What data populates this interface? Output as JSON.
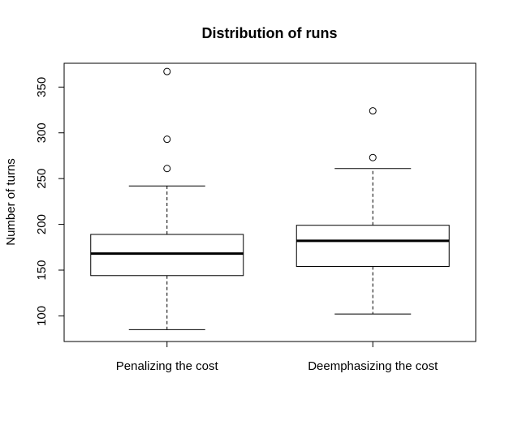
{
  "chart_data": {
    "type": "boxplot",
    "title": "Distribution of runs",
    "xlabel": "",
    "ylabel": "Number of turns",
    "ylim": [
      72,
      376
    ],
    "yticks": [
      100,
      150,
      200,
      250,
      300,
      350
    ],
    "grid": false,
    "legend": "none",
    "categories": [
      "Penalizing the cost",
      "Deemphasizing the cost"
    ],
    "boxes": [
      {
        "min": 85,
        "q1": 144,
        "median": 168,
        "q3": 189,
        "max": 242,
        "outliers": [
          261,
          293,
          367
        ]
      },
      {
        "min": 102,
        "q1": 154,
        "median": 182,
        "q3": 199,
        "max": 261,
        "outliers": [
          273,
          324
        ]
      }
    ]
  }
}
